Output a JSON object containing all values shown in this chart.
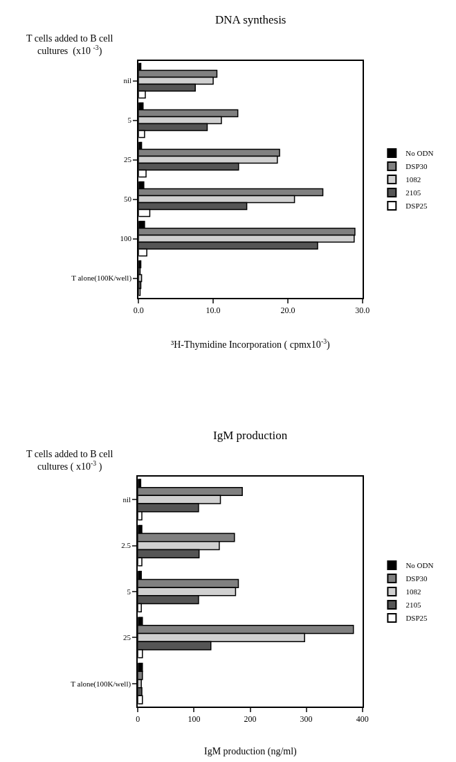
{
  "chart_data": [
    {
      "type": "bar",
      "orientation": "horizontal",
      "title": "DNA synthesis",
      "ylabel": "T cells added to B cell cultures  (x10 $^{-3}$)",
      "xlabel": "³H-Thymidine Incorporation ( cpmx10$^{-3}$)",
      "categories": [
        "nil",
        "5",
        "25",
        "50",
        "100",
        "T alone(100K/well)"
      ],
      "series": [
        {
          "name": "No ODN",
          "color": "#000000",
          "values": [
            0.3,
            0.6,
            0.4,
            0.7,
            0.8,
            0.3
          ]
        },
        {
          "name": "DSP30",
          "color": "#808080",
          "values": [
            10.5,
            13.3,
            18.9,
            24.7,
            29.0,
            0.2
          ]
        },
        {
          "name": "1082",
          "color": "#d0d0d0",
          "values": [
            10.0,
            11.1,
            18.6,
            20.9,
            28.9,
            0.4
          ]
        },
        {
          "name": "2105",
          "color": "#555555",
          "values": [
            7.6,
            9.2,
            13.4,
            14.5,
            24.0,
            0.3
          ]
        },
        {
          "name": "DSP25",
          "color": "#ffffff",
          "values": [
            0.9,
            0.8,
            1.0,
            1.5,
            1.1,
            0.2
          ]
        }
      ],
      "xlim": [
        0,
        30
      ],
      "xticks": [
        {
          "value": 0,
          "label": "0.0"
        },
        {
          "value": 10,
          "label": "10.0"
        },
        {
          "value": 20,
          "label": "20.0"
        },
        {
          "value": 30,
          "label": "30.0"
        }
      ],
      "legend": "right"
    },
    {
      "type": "bar",
      "orientation": "horizontal",
      "title": "IgM production",
      "ylabel": "T cells added to B cell cultures ( x10$^{-3}$ )",
      "xlabel": "IgM production (ng/ml)",
      "categories": [
        "nil",
        "2.5",
        "5",
        "25",
        "T alone(100K/well)"
      ],
      "series": [
        {
          "name": "No ODN",
          "color": "#000000",
          "values": [
            5,
            7,
            6,
            8,
            8
          ]
        },
        {
          "name": "DSP30",
          "color": "#808080",
          "values": [
            186,
            172,
            179,
            384,
            8
          ]
        },
        {
          "name": "1082",
          "color": "#d0d0d0",
          "values": [
            147,
            145,
            174,
            297,
            6
          ]
        },
        {
          "name": "2105",
          "color": "#555555",
          "values": [
            108,
            109,
            108,
            130,
            7
          ]
        },
        {
          "name": "DSP25",
          "color": "#ffffff",
          "values": [
            7,
            7,
            6,
            8,
            8
          ]
        }
      ],
      "xlim": [
        0,
        400
      ],
      "xticks": [
        0,
        100,
        200,
        300,
        400
      ],
      "legend": "right"
    }
  ]
}
